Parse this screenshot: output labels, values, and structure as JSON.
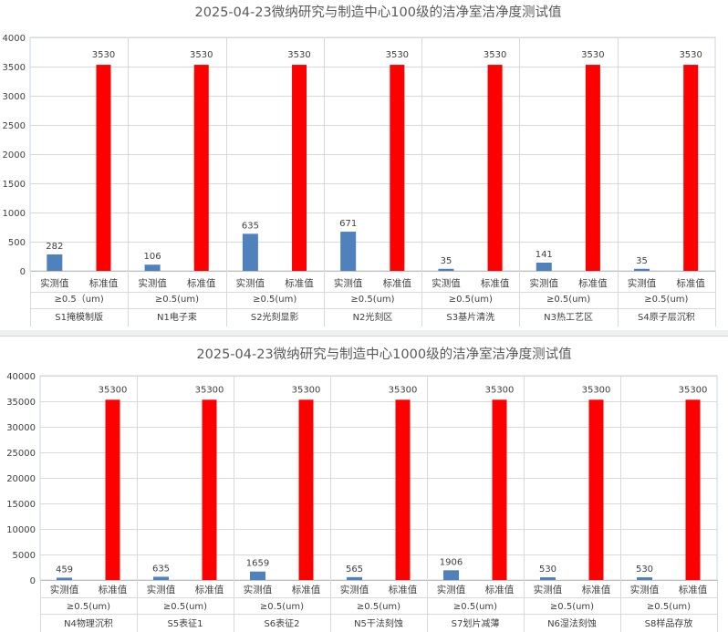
{
  "colors": {
    "measured": "#4f81bd",
    "standard": "#ff0000"
  },
  "chart_data": [
    {
      "type": "bar",
      "title": "2025-04-23微纳研究与制造中心100级的洁净室洁净度测试值",
      "ylim": [
        0,
        4000
      ],
      "yticks": [
        0,
        500,
        1000,
        1500,
        2000,
        2500,
        3000,
        3500,
        4000
      ],
      "grid": true,
      "legend": "none",
      "series_labels": [
        "实测值",
        "标准值"
      ],
      "groups": [
        {
          "particle": "≥0.5（um)",
          "area": "S1掩模制版",
          "measured": 282,
          "standard": 3530
        },
        {
          "particle": "≥0.5(um)",
          "area": "N1电子束",
          "measured": 106,
          "standard": 3530
        },
        {
          "particle": "≥0.5(um)",
          "area": "S2光刻显影",
          "measured": 635,
          "standard": 3530
        },
        {
          "particle": "≥0.5(um)",
          "area": "N2光刻区",
          "measured": 671,
          "standard": 3530
        },
        {
          "particle": "≥0.5(um)",
          "area": "S3基片清洗",
          "measured": 35,
          "standard": 3530
        },
        {
          "particle": "≥0.5(um)",
          "area": "N3热工艺区",
          "measured": 141,
          "standard": 3530
        },
        {
          "particle": "≥0.5(um)",
          "area": "S4原子层沉积",
          "measured": 35,
          "standard": 3530
        }
      ]
    },
    {
      "type": "bar",
      "title": "2025-04-23微纳研究与制造中心1000级的洁净室洁净度测试值",
      "ylim": [
        0,
        40000
      ],
      "yticks": [
        0,
        5000,
        10000,
        15000,
        20000,
        25000,
        30000,
        35000,
        40000
      ],
      "grid": true,
      "legend": "none",
      "series_labels": [
        "实测值",
        "标准值"
      ],
      "groups": [
        {
          "particle": "≥0.5(um)",
          "area": "N4物理沉积",
          "measured": 459,
          "standard": 35300
        },
        {
          "particle": "≥0.5(um)",
          "area": "S5表征1",
          "measured": 635,
          "standard": 35300
        },
        {
          "particle": "≥0.5(um)",
          "area": "S6表征2",
          "measured": 1659,
          "standard": 35300
        },
        {
          "particle": "≥0.5(um)",
          "area": "N5干法刻蚀",
          "measured": 565,
          "standard": 35300
        },
        {
          "particle": "≥0.5(um)",
          "area": "S7划片减薄",
          "measured": 1906,
          "standard": 35300
        },
        {
          "particle": "≥0.5(um)",
          "area": "N6湿法刻蚀",
          "measured": 530,
          "standard": 35300
        },
        {
          "particle": "≥0.5(um)",
          "area": "S8样品存放",
          "measured": 530,
          "standard": 35300
        }
      ]
    }
  ]
}
